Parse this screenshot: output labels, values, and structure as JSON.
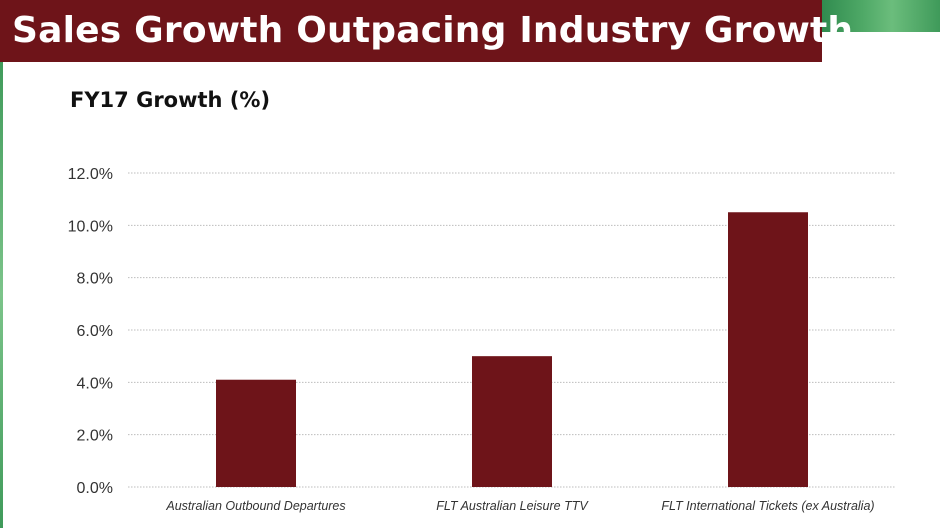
{
  "slide": {
    "title": "Sales Growth Outpacing Industry Growth",
    "colors": {
      "title_bar": "#6e1419",
      "bar": "#6e1419",
      "accent_green": "#3f9a5a"
    }
  },
  "chart_data": {
    "type": "bar",
    "title": "FY17 Growth (%)",
    "categories": [
      "Australian Outbound Departures",
      "FLT Australian Leisure TTV",
      "FLT International Tickets (ex Australia)"
    ],
    "values": [
      4.1,
      5.0,
      10.5
    ],
    "yticks": [
      "0.0%",
      "2.0%",
      "4.0%",
      "6.0%",
      "8.0%",
      "10.0%",
      "12.0%"
    ],
    "ylim": [
      0,
      12
    ],
    "unit": "%",
    "grid": true,
    "legend": "none"
  }
}
